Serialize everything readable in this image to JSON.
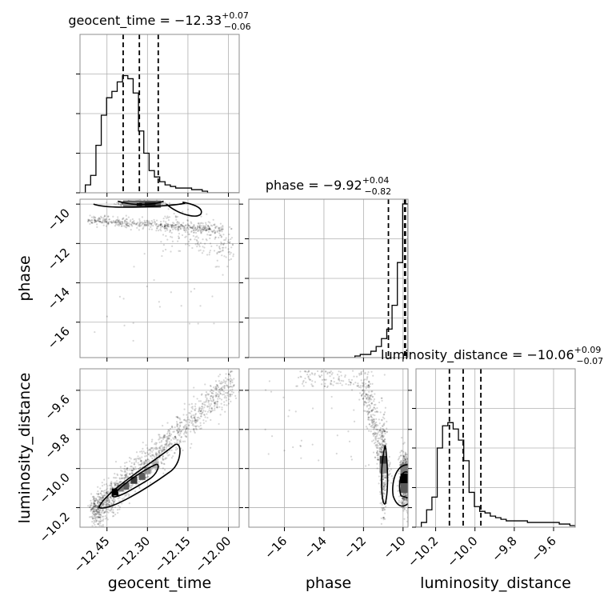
{
  "chart_data": {
    "type": "corner",
    "parameters": [
      "geocent_time",
      "phase",
      "luminosity_distance"
    ],
    "axis_labels": [
      "geocent_time",
      "phase",
      "luminosity_distance"
    ],
    "titles": [
      {
        "param": "geocent_time",
        "text": "geocent_time = −12.33",
        "plus": "+0.07",
        "minus": "−0.06"
      },
      {
        "param": "phase",
        "text": "phase = −9.92",
        "plus": "+0.04",
        "minus": "−0.82"
      },
      {
        "param": "luminosity_distance",
        "text": "luminosity_distance = −10.06",
        "plus": "+0.09",
        "minus": "−0.07"
      }
    ],
    "ranges": {
      "geocent_time": [
        -12.55,
        -11.96
      ],
      "phase": [
        -17.8,
        -9.75
      ],
      "luminosity_distance": [
        -10.3,
        -9.49
      ]
    },
    "ticks": {
      "geocent_time": {
        "values": [
          -12.45,
          -12.3,
          -12.15,
          -12.0
        ],
        "labels": [
          "−12.45",
          "−12.30",
          "−12.15",
          "−12.00"
        ]
      },
      "phase": {
        "values": [
          -16,
          -14,
          -12,
          -10
        ],
        "labels": [
          "−16",
          "−14",
          "−12",
          "−10"
        ]
      },
      "luminosity_distance": {
        "values": [
          -10.2,
          -10.0,
          -9.8,
          -9.6
        ],
        "labels": [
          "−10.2",
          "−10.0",
          "−9.8",
          "−9.6"
        ]
      }
    },
    "quantiles": {
      "geocent_time": [
        -12.39,
        -12.33,
        -12.26
      ],
      "phase": [
        -10.74,
        -9.92,
        -9.88
      ],
      "luminosity_distance": [
        -10.13,
        -10.06,
        -9.97
      ]
    },
    "histograms": {
      "geocent_time": {
        "edges_start": -12.55,
        "bin_width": 0.0197,
        "counts": [
          0,
          0.05,
          0.11,
          0.3,
          0.49,
          0.6,
          0.64,
          0.7,
          0.74,
          0.72,
          0.63,
          0.39,
          0.25,
          0.14,
          0.1,
          0.07,
          0.05,
          0.04,
          0.03,
          0.03,
          0.03,
          0.02,
          0.02,
          0.01,
          0.0,
          0.0,
          0.0,
          0.0,
          0.0,
          0.0
        ]
      },
      "phase": {
        "edges_start": -17.8,
        "bin_width": 0.2683,
        "counts": [
          0,
          0,
          0,
          0,
          0,
          0,
          0,
          0,
          0,
          0,
          0,
          0,
          0,
          0,
          0,
          0,
          0,
          0,
          0,
          0,
          0.01,
          0.02,
          0.02,
          0.04,
          0.07,
          0.12,
          0.18,
          0.33,
          0.6,
          0.97
        ]
      },
      "luminosity_distance": {
        "edges_start": -10.3,
        "bin_width": 0.027,
        "counts": [
          0,
          0.03,
          0.11,
          0.19,
          0.5,
          0.64,
          0.66,
          0.62,
          0.55,
          0.42,
          0.22,
          0.13,
          0.1,
          0.09,
          0.07,
          0.06,
          0.05,
          0.04,
          0.04,
          0.04,
          0.04,
          0.03,
          0.03,
          0.03,
          0.03,
          0.03,
          0.03,
          0.02,
          0.02,
          0.01
        ]
      }
    },
    "grid": true
  }
}
